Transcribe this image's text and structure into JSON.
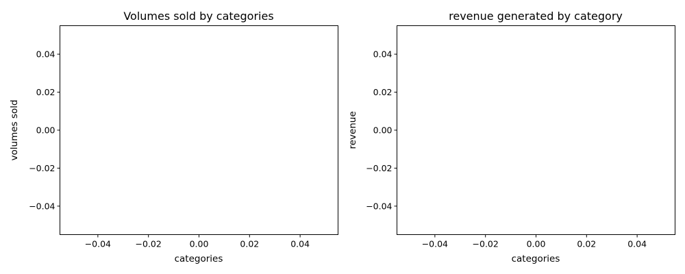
{
  "chart_data": [
    {
      "type": "bar",
      "title": "Volumes sold by categories",
      "xlabel": "categories",
      "ylabel": "volumes sold",
      "categories": [],
      "values": [],
      "xlim": [
        -0.055,
        0.055
      ],
      "ylim": [
        -0.055,
        0.055
      ],
      "xticks": [
        "−0.04",
        "−0.02",
        "0.00",
        "0.02",
        "0.04"
      ],
      "xtick_values": [
        -0.04,
        -0.02,
        0.0,
        0.02,
        0.04
      ],
      "yticks": [
        "0.04",
        "0.02",
        "0.00",
        "−0.02",
        "−0.04"
      ],
      "ytick_values": [
        0.04,
        0.02,
        0.0,
        -0.02,
        -0.04
      ],
      "grid": false
    },
    {
      "type": "bar",
      "title": "revenue generated by category",
      "xlabel": "categories",
      "ylabel": "revenue",
      "categories": [],
      "values": [],
      "xlim": [
        -0.055,
        0.055
      ],
      "ylim": [
        -0.055,
        0.055
      ],
      "xticks": [
        "−0.04",
        "−0.02",
        "0.00",
        "0.02",
        "0.04"
      ],
      "xtick_values": [
        -0.04,
        -0.02,
        0.0,
        0.02,
        0.04
      ],
      "yticks": [
        "0.04",
        "0.02",
        "0.00",
        "−0.02",
        "−0.04"
      ],
      "ytick_values": [
        0.04,
        0.02,
        0.0,
        -0.02,
        -0.04
      ],
      "grid": false
    }
  ]
}
